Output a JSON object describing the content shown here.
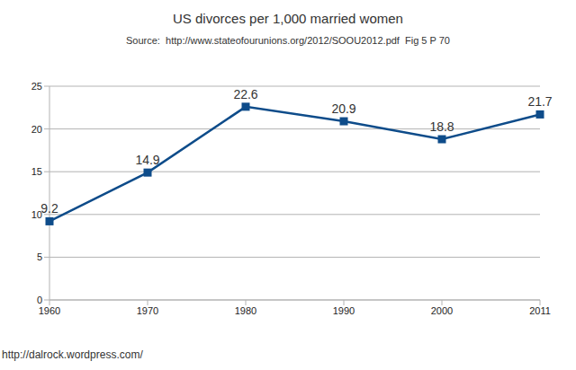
{
  "chart_data": {
    "type": "line",
    "title": "US divorces per 1,000 married women",
    "subtitle": "Source:  http://www.stateofourunions.org/2012/SOOU2012.pdf  Fig 5 P 70",
    "annotations": [
      "http://dalrock.wordpress.com/"
    ],
    "categories": [
      "1960",
      "1970",
      "1980",
      "1990",
      "2000",
      "2011"
    ],
    "values": [
      9.2,
      14.9,
      22.6,
      20.9,
      18.8,
      21.7
    ],
    "color": "#0e4c8a",
    "marker": "square",
    "ylim": [
      0,
      25
    ],
    "yticks": [
      0,
      5,
      10,
      15,
      20,
      25
    ],
    "grid": true,
    "data_labels": true
  }
}
